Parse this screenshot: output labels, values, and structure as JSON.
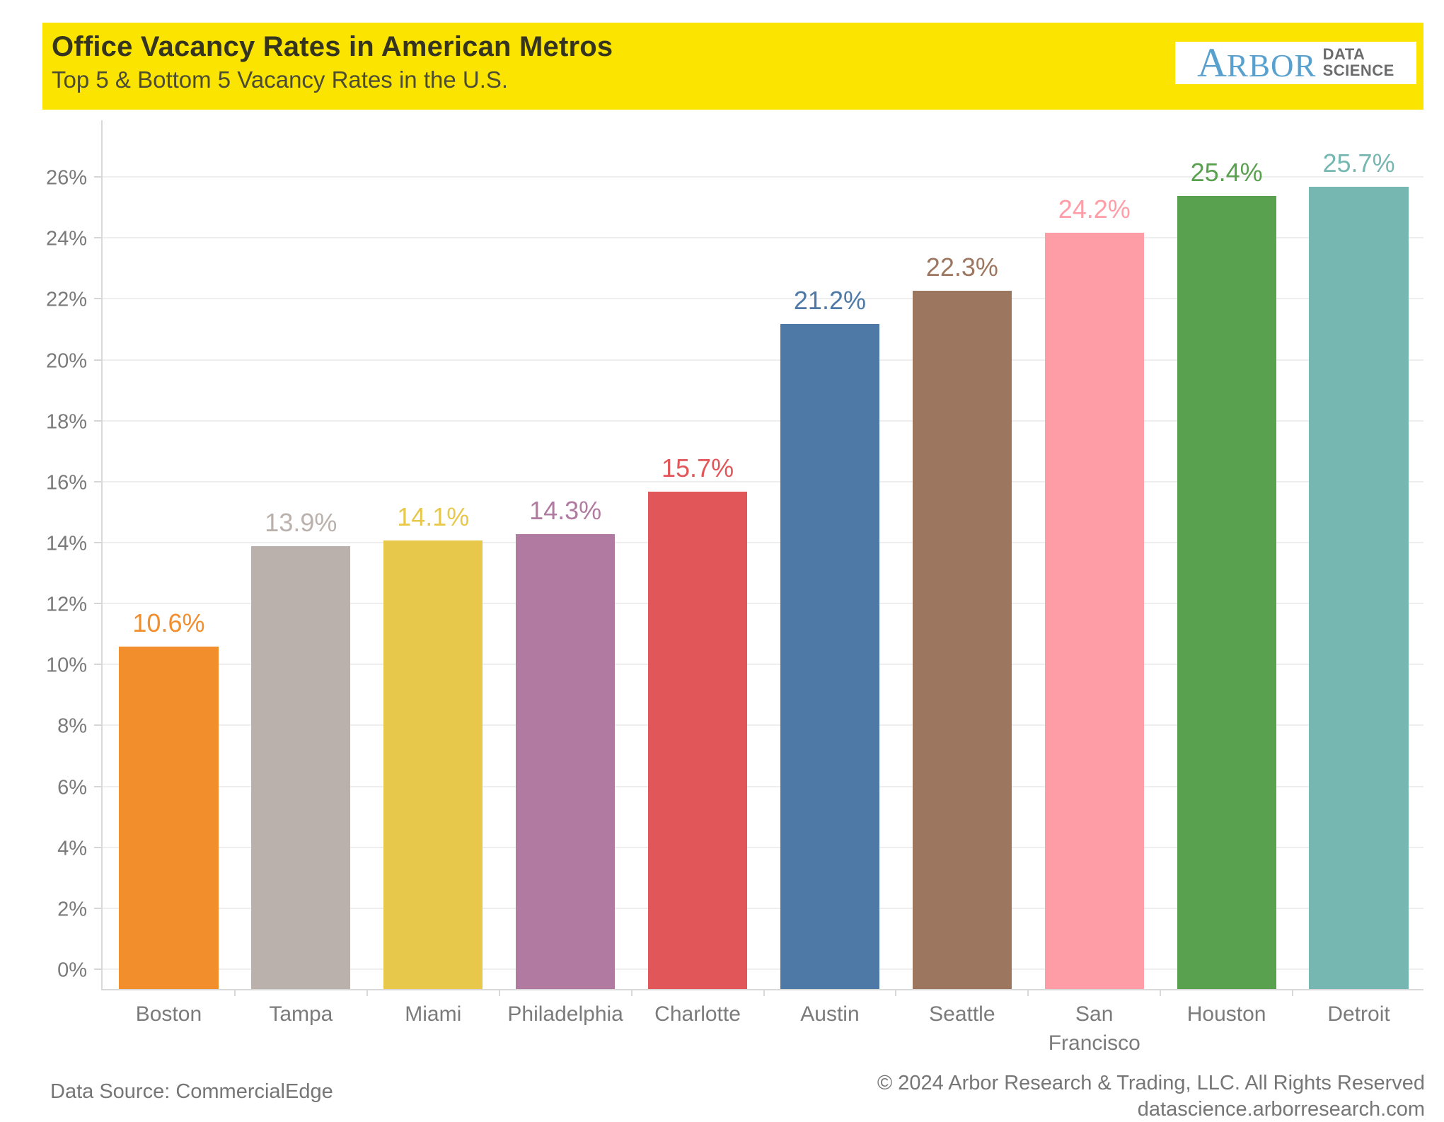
{
  "header": {
    "title": "Office Vacancy Rates in American Metros",
    "subtitle": "Top 5 & Bottom 5 Vacancy Rates in the U.S.",
    "banner_color": "#FBE400"
  },
  "logo": {
    "brand_initial": "A",
    "brand_rest": "RBOR",
    "suffix_line1": "DATA",
    "suffix_line2": "SCIENCE",
    "brand_color": "#58A1CF",
    "suffix_color": "#6B6B6B"
  },
  "chart_data": {
    "type": "bar",
    "title": "Office Vacancy Rates in American Metros",
    "subtitle": "Top 5 & Bottom 5 Vacancy Rates in the U.S.",
    "categories": [
      "Boston",
      "Tampa",
      "Miami",
      "Philadelphia",
      "Charlotte",
      "Austin",
      "Seattle",
      "San Francisco",
      "Houston",
      "Detroit"
    ],
    "values": [
      10.6,
      13.9,
      14.1,
      14.3,
      15.7,
      21.2,
      22.3,
      24.2,
      25.4,
      25.7
    ],
    "value_labels": [
      "10.6%",
      "13.9%",
      "14.1%",
      "14.3%",
      "15.7%",
      "21.2%",
      "22.3%",
      "24.2%",
      "25.4%",
      "25.7%"
    ],
    "bar_colors": [
      "#F28E2B",
      "#BAB0AC",
      "#E8C84A",
      "#B07AA1",
      "#E15759",
      "#4E79A7",
      "#9D7660",
      "#FF9DA7",
      "#59A14F",
      "#76B7B2"
    ],
    "xlabel": "",
    "ylabel": "",
    "ylim": [
      0,
      26
    ],
    "ytick_values": [
      0,
      2,
      4,
      6,
      8,
      10,
      12,
      14,
      16,
      18,
      20,
      22,
      24,
      26
    ],
    "ytick_labels": [
      "0%",
      "2%",
      "4%",
      "6%",
      "8%",
      "10%",
      "12%",
      "14%",
      "16%",
      "18%",
      "20%",
      "22%",
      "24%",
      "26%"
    ],
    "grid": "horizontal",
    "legend": "none"
  },
  "footer": {
    "source": "Data Source: CommercialEdge",
    "copyright": "© 2024 Arbor Research & Trading, LLC. All Rights Reserved",
    "website": "datascience.arborresearch.com"
  }
}
